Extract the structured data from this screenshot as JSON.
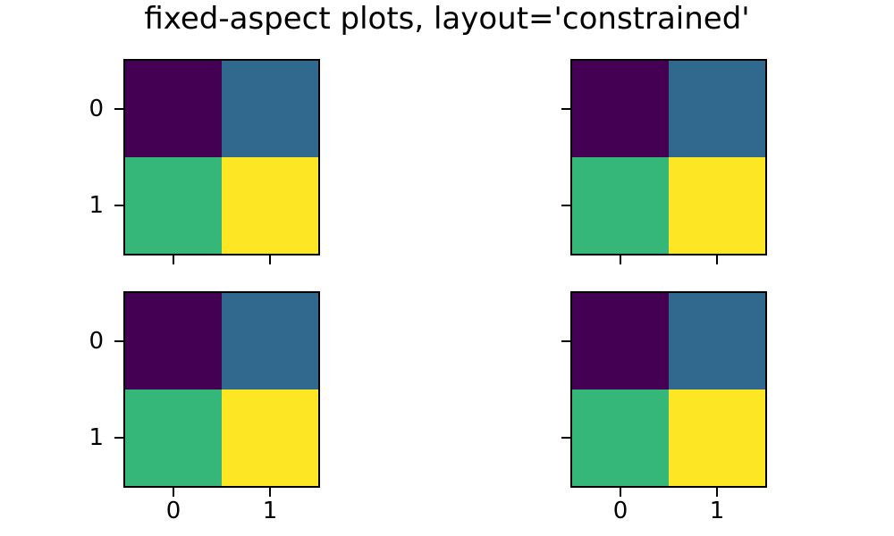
{
  "figure": {
    "title": "fixed-aspect plots, layout='constrained'",
    "background": "#ffffff"
  },
  "chart_data": {
    "type": "heatmap",
    "title": "fixed-aspect plots, layout='constrained'",
    "colormap": "viridis",
    "layout": "2x2 grid of identical fixed-aspect subplots, constrained layout, only outer tick labels shown",
    "values": [
      [
        0,
        1
      ],
      [
        2,
        3
      ]
    ],
    "cell_colors": [
      [
        "#440154",
        "#31688e"
      ],
      [
        "#35b779",
        "#fde725"
      ]
    ],
    "x_ticks": [
      "0",
      "1"
    ],
    "y_ticks": [
      "0",
      "1"
    ],
    "axis_color": "#000000",
    "subplots": [
      {
        "id": "top-left",
        "show_x_labels": false,
        "show_y_labels": true
      },
      {
        "id": "top-right",
        "show_x_labels": false,
        "show_y_labels": false
      },
      {
        "id": "bottom-left",
        "show_x_labels": true,
        "show_y_labels": true
      },
      {
        "id": "bottom-right",
        "show_x_labels": true,
        "show_y_labels": false
      }
    ]
  }
}
